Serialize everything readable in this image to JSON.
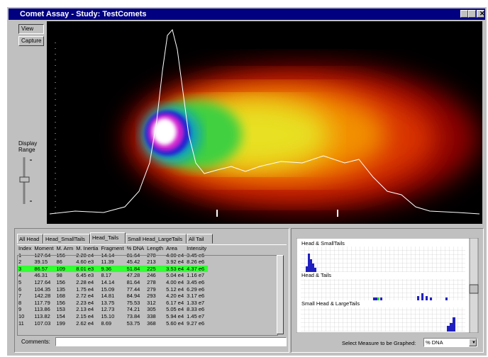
{
  "window": {
    "title": "Comet Assay - Study: TestComets"
  },
  "left_panel": {
    "buttons": [
      "View",
      "Capture"
    ],
    "display_range_label": "Display Range"
  },
  "tabs": [
    "All Head",
    "Head_SmallTails",
    "Head_Tails",
    "Small Head_LargeTails",
    "All Tail"
  ],
  "table": {
    "columns": [
      "Index",
      "Moment",
      "M. Arm",
      "M. Inertia",
      "Fragment",
      "% DNA",
      "Length",
      "Area",
      "Intensity"
    ],
    "rows": [
      [
        "1",
        "127.64",
        "156",
        "2.28 e4",
        "14.14",
        "81.64",
        "278",
        "4.00 e4",
        "3.45 e6"
      ],
      [
        "2",
        "39.15",
        "86",
        "4.60 e3",
        "11.39",
        "45.42",
        "213",
        "3.92 e4",
        "8.26 e6"
      ],
      [
        "3",
        "86.57",
        "109",
        "8.01 e3",
        "9.36",
        "51.84",
        "225",
        "3.53 e4",
        "4.37 e6"
      ],
      [
        "4",
        "46.31",
        "98",
        "6.45 e3",
        "8.17",
        "47.28",
        "246",
        "5.04 e4",
        "1.16 e7"
      ],
      [
        "5",
        "127.64",
        "156",
        "2.28 e4",
        "14.14",
        "81.64",
        "278",
        "4.00 e4",
        "3.45 e6"
      ],
      [
        "6",
        "104.35",
        "135",
        "1.75 e4",
        "15.09",
        "77.44",
        "279",
        "5.12 e4",
        "6.29 e6"
      ],
      [
        "7",
        "142.28",
        "168",
        "2.72 e4",
        "14.81",
        "84.94",
        "293",
        "4.20 e4",
        "3.17 e6"
      ],
      [
        "8",
        "117.79",
        "156",
        "2.23 e4",
        "13.75",
        "75.53",
        "312",
        "6.17 e4",
        "1.33 e7"
      ],
      [
        "9",
        "113.86",
        "153",
        "2.13 e4",
        "12.73",
        "74.21",
        "305",
        "5.05 e4",
        "8.33 e6"
      ],
      [
        "10",
        "113.82",
        "154",
        "2.15 e4",
        "15.10",
        "73.84",
        "338",
        "5.94 e4",
        "1.45 e7"
      ],
      [
        "11",
        "107.03",
        "199",
        "2.62 e4",
        "8.69",
        "53.75",
        "368",
        "5.60 e4",
        "9.27 e6"
      ]
    ]
  },
  "comments_label": "Comments:",
  "graphs": {
    "labels": [
      "Head & SmallTails",
      "Head & Tails",
      "Small Head & LargeTails"
    ],
    "select_label": "Select Measure to be Graphed:",
    "selected": "% DNA"
  }
}
